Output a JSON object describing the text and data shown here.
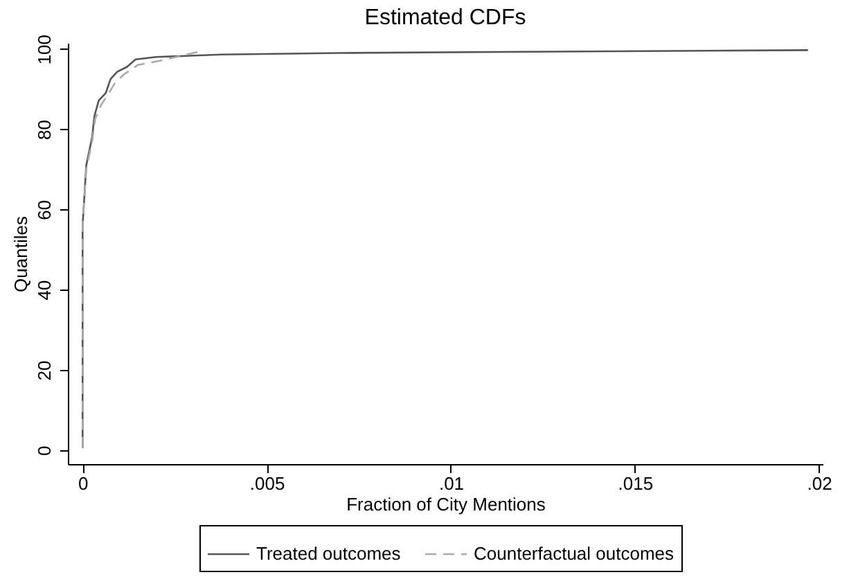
{
  "chart_data": {
    "type": "line",
    "title": "Estimated CDFs",
    "xlabel": "Fraction of City Mentions",
    "ylabel": "Quantiles",
    "xlim": [
      -0.0004,
      0.0201
    ],
    "ylim": [
      -3.5,
      101.5
    ],
    "xticks": [
      {
        "value": 0,
        "label": "0"
      },
      {
        "value": 0.005,
        "label": ".005"
      },
      {
        "value": 0.01,
        "label": ".01"
      },
      {
        "value": 0.015,
        "label": ".015"
      },
      {
        "value": 0.02,
        "label": ".02"
      }
    ],
    "yticks": [
      0,
      20,
      40,
      60,
      80,
      100
    ],
    "grid": false,
    "legend": "bottom",
    "marker": "none",
    "series": [
      {
        "name": "Treated outcomes",
        "color": "#555555",
        "line_style": "solid",
        "x": [
          0,
          0,
          0.0001,
          0.00026,
          0.00032,
          0.00044,
          0.00063,
          0.00076,
          0.00094,
          0.0012,
          0.00144,
          0.002,
          0.00376,
          0.007,
          0.012,
          0.0197
        ],
        "values": [
          0.5,
          56,
          71,
          78,
          83.2,
          87.2,
          89,
          92.5,
          94.3,
          95.5,
          97.4,
          98,
          98.6,
          99,
          99.3,
          99.7
        ]
      },
      {
        "name": "Counterfactual outcomes",
        "color": "#aaaaaa",
        "line_style": "dashed",
        "x": [
          0,
          0,
          0.0001,
          0.00026,
          0.00034,
          0.0005,
          0.00068,
          0.00088,
          0.0011,
          0.0015,
          0.00207,
          0.0033
        ],
        "values": [
          0.5,
          56,
          70,
          77,
          82.5,
          86,
          88.5,
          91.5,
          93.5,
          96,
          97,
          99.6
        ]
      }
    ]
  }
}
